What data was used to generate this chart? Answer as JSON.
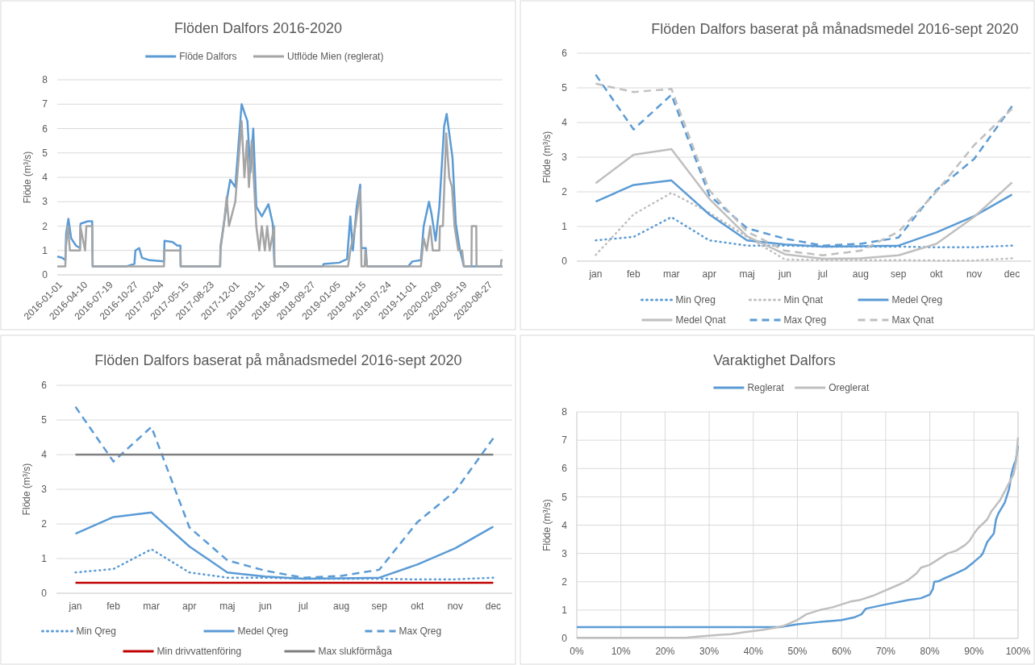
{
  "chart_data": [
    {
      "type": "line",
      "title": "Flöden Dalfors 2016-2020",
      "ylabel": "Flöde (m³/s)",
      "legend": "top",
      "grid": "y",
      "xlim": [
        "2016-01-01",
        "2020-10-27"
      ],
      "xticks": [
        "2016-01-01",
        "2016-04-10",
        "2016-07-19",
        "2016-10-27",
        "2017-02-04",
        "2017-05-15",
        "2017-08-23",
        "2017-12-01",
        "2018-03-11",
        "2018-06-19",
        "2018-09-27",
        "2019-01-05",
        "2019-04-15",
        "2019-07-24",
        "2019-11-01",
        "2020-02-09",
        "2020-05-19",
        "2020-08-27"
      ],
      "ylim": [
        0,
        8
      ],
      "yticks": [
        0,
        1,
        2,
        3,
        4,
        5,
        6,
        7,
        8
      ],
      "series": [
        {
          "name": "Flöde Dalfors",
          "color": "#5b9bd5",
          "line_style": "solid",
          "x": [
            "2016-01-01",
            "2016-01-20",
            "2016-02-02",
            "2016-02-05",
            "2016-02-14",
            "2016-02-25",
            "2016-03-15",
            "2016-03-31",
            "2016-04-02",
            "2016-05-01",
            "2016-05-18",
            "2016-05-20",
            "2016-10-01",
            "2016-11-01",
            "2016-11-05",
            "2016-11-20",
            "2016-12-01",
            "2017-01-01",
            "2017-02-26",
            "2017-02-28",
            "2017-04-01",
            "2017-04-20",
            "2017-05-02",
            "2017-05-03",
            "2017-10-06",
            "2017-10-08",
            "2017-10-25",
            "2017-11-05",
            "2017-11-15",
            "2017-12-05",
            "2017-12-30",
            "2018-01-12",
            "2018-01-22",
            "2018-02-03",
            "2018-02-14",
            "2018-02-26",
            "2018-03-20",
            "2018-04-15",
            "2018-05-02",
            "2018-05-09",
            "2018-11-15",
            "2018-11-20",
            "2019-01-20",
            "2019-02-20",
            "2019-03-05",
            "2019-03-15",
            "2019-03-30",
            "2019-04-13",
            "2019-04-18",
            "2019-05-05",
            "2019-05-10",
            "2019-10-20",
            "2019-11-05",
            "2019-12-09",
            "2019-12-20",
            "2020-01-10",
            "2020-01-20",
            "2020-02-05",
            "2020-02-20",
            "2020-03-10",
            "2020-03-20",
            "2020-04-12",
            "2020-04-25",
            "2020-05-10",
            "2020-05-27",
            "2020-10-27"
          ],
          "values": [
            0.75,
            0.7,
            0.6,
            1.7,
            2.3,
            1.5,
            1.2,
            1.1,
            2.1,
            2.2,
            2.2,
            0.35,
            0.35,
            0.45,
            1.0,
            1.1,
            0.7,
            0.6,
            0.55,
            1.4,
            1.35,
            1.2,
            1.2,
            0.35,
            0.35,
            1.2,
            2.4,
            3.3,
            3.9,
            3.6,
            7.0,
            6.6,
            6.3,
            4.2,
            6.0,
            2.8,
            2.4,
            2.9,
            2.1,
            0.35,
            0.35,
            0.45,
            0.5,
            0.65,
            2.4,
            1.0,
            2.8,
            3.7,
            1.1,
            1.1,
            0.35,
            0.35,
            0.55,
            0.6,
            2.0,
            3.0,
            2.5,
            1.4,
            2.8,
            6.1,
            6.6,
            4.8,
            2.1,
            1.1,
            0.35,
            0.35
          ]
        },
        {
          "name": "Utflöde Mien (reglerat)",
          "color": "#a5a5a5",
          "line_style": "solid",
          "x": [
            "2016-01-01",
            "2016-02-02",
            "2016-02-03",
            "2016-02-12",
            "2016-02-20",
            "2016-03-31",
            "2016-04-01",
            "2016-04-20",
            "2016-04-25",
            "2016-05-18",
            "2016-05-20",
            "2017-02-26",
            "2017-02-27",
            "2017-05-02",
            "2017-05-03",
            "2017-10-06",
            "2017-10-07",
            "2017-10-20",
            "2017-11-01",
            "2017-11-10",
            "2017-12-05",
            "2017-12-30",
            "2018-01-10",
            "2018-01-20",
            "2018-01-28",
            "2018-02-08",
            "2018-02-26",
            "2018-03-10",
            "2018-03-20",
            "2018-04-01",
            "2018-04-10",
            "2018-04-20",
            "2018-05-08",
            "2018-05-09",
            "2019-02-24",
            "2019-03-05",
            "2019-03-25",
            "2019-04-13",
            "2019-04-18",
            "2019-05-01",
            "2019-05-03",
            "2019-05-10",
            "2019-12-09",
            "2019-12-20",
            "2020-01-01",
            "2020-01-15",
            "2020-01-25",
            "2020-02-20",
            "2020-02-22",
            "2020-03-05",
            "2020-03-18",
            "2020-03-30",
            "2020-04-10",
            "2020-04-20",
            "2020-05-05",
            "2020-05-20",
            "2020-05-27",
            "2020-06-26",
            "2020-06-27",
            "2020-07-15",
            "2020-07-16",
            "2020-10-20",
            "2020-10-22",
            "2020-10-27"
          ],
          "values": [
            0.35,
            0.35,
            1.0,
            2.0,
            1.0,
            1.0,
            2.0,
            1.0,
            2.0,
            2.0,
            0.35,
            0.35,
            1.0,
            1.0,
            0.35,
            0.35,
            1.0,
            2.0,
            3.2,
            2.0,
            3.0,
            6.3,
            4.0,
            5.5,
            3.6,
            5.5,
            2.0,
            1.0,
            2.0,
            1.0,
            2.0,
            1.0,
            2.0,
            0.35,
            0.35,
            1.0,
            2.0,
            3.5,
            0.35,
            0.35,
            1.0,
            0.35,
            0.35,
            1.5,
            1.0,
            2.0,
            1.0,
            1.0,
            2.0,
            2.0,
            5.8,
            4.0,
            3.6,
            2.0,
            1.0,
            1.0,
            0.35,
            0.35,
            2.0,
            2.0,
            0.35,
            0.35,
            0.6,
            0.6
          ]
        }
      ]
    },
    {
      "type": "line",
      "title": "Flöden Dalfors baserat på månadsmedel 2016-sept 2020",
      "ylabel": "Flöde (m³/s)",
      "legend": "bottom",
      "grid": "y",
      "categories": [
        "jan",
        "feb",
        "mar",
        "apr",
        "maj",
        "jun",
        "jul",
        "aug",
        "sep",
        "okt",
        "nov",
        "dec"
      ],
      "ylim": [
        0,
        6
      ],
      "yticks": [
        0,
        1,
        2,
        3,
        4,
        5,
        6
      ],
      "series": [
        {
          "name": "Min Qreg",
          "color": "#5b9bd5",
          "line_style": "dotted",
          "values": [
            0.6,
            0.7,
            1.27,
            0.6,
            0.45,
            0.45,
            0.42,
            0.42,
            0.42,
            0.4,
            0.4,
            0.45
          ]
        },
        {
          "name": "Min Qnat",
          "color": "#bfbfbf",
          "line_style": "dotted",
          "values": [
            0.18,
            1.35,
            1.97,
            1.4,
            0.7,
            0.05,
            0.03,
            0.03,
            0.03,
            0.02,
            0.02,
            0.08
          ]
        },
        {
          "name": "Medel Qreg",
          "color": "#5b9bd5",
          "line_style": "solid",
          "values": [
            1.72,
            2.2,
            2.33,
            1.35,
            0.6,
            0.48,
            0.42,
            0.43,
            0.45,
            0.83,
            1.3,
            1.92
          ]
        },
        {
          "name": "Medel Qnat",
          "color": "#bfbfbf",
          "line_style": "solid",
          "values": [
            2.25,
            3.07,
            3.23,
            1.8,
            0.72,
            0.2,
            0.07,
            0.08,
            0.17,
            0.5,
            1.28,
            2.27
          ]
        },
        {
          "name": "Max Qreg",
          "color": "#5b9bd5",
          "line_style": "dashed",
          "values": [
            5.38,
            3.8,
            4.8,
            1.9,
            0.95,
            0.65,
            0.45,
            0.5,
            0.68,
            2.05,
            2.95,
            4.47
          ]
        },
        {
          "name": "Max Qnat",
          "color": "#bfbfbf",
          "line_style": "dashed",
          "values": [
            5.12,
            4.88,
            4.97,
            2.05,
            0.85,
            0.3,
            0.17,
            0.3,
            0.85,
            2.0,
            3.35,
            4.4
          ]
        }
      ]
    },
    {
      "type": "line",
      "title": "Flöden Dalfors baserat på månadsmedel 2016-sept 2020",
      "ylabel": "Flöde (m³/s)",
      "legend": "bottom",
      "grid": "y",
      "categories": [
        "jan",
        "feb",
        "mar",
        "apr",
        "maj",
        "jun",
        "jul",
        "aug",
        "sep",
        "okt",
        "nov",
        "dec"
      ],
      "ylim": [
        0,
        6
      ],
      "yticks": [
        0,
        1,
        2,
        3,
        4,
        5,
        6
      ],
      "series": [
        {
          "name": "Min Qreg",
          "color": "#5b9bd5",
          "line_style": "dotted",
          "values": [
            0.6,
            0.7,
            1.27,
            0.6,
            0.45,
            0.45,
            0.42,
            0.42,
            0.42,
            0.4,
            0.4,
            0.45
          ]
        },
        {
          "name": "Medel Qreg",
          "color": "#5b9bd5",
          "line_style": "solid",
          "values": [
            1.72,
            2.2,
            2.33,
            1.35,
            0.6,
            0.48,
            0.42,
            0.43,
            0.45,
            0.83,
            1.3,
            1.92
          ]
        },
        {
          "name": "Max Qreg",
          "color": "#5b9bd5",
          "line_style": "dashed",
          "values": [
            5.38,
            3.8,
            4.8,
            1.9,
            0.95,
            0.65,
            0.45,
            0.5,
            0.68,
            2.05,
            2.95,
            4.47
          ]
        },
        {
          "name": "Min drivvattenföring",
          "color": "#c00000",
          "line_style": "solid",
          "values": [
            0.3,
            0.3,
            0.3,
            0.3,
            0.3,
            0.3,
            0.3,
            0.3,
            0.3,
            0.3,
            0.3,
            0.3
          ]
        },
        {
          "name": "Max slukförmåga",
          "color": "#7f7f7f",
          "line_style": "solid",
          "values": [
            4,
            4,
            4,
            4,
            4,
            4,
            4,
            4,
            4,
            4,
            4,
            4
          ]
        }
      ]
    },
    {
      "type": "line",
      "title": "Varaktighet Dalfors",
      "ylabel": "Flöde (m³/s)",
      "legend": "top",
      "grid": true,
      "xlim": [
        0,
        100
      ],
      "xticks": [
        {
          "value": 0,
          "label": "0%"
        },
        {
          "value": 10,
          "label": "10%"
        },
        {
          "value": 20,
          "label": "20%"
        },
        {
          "value": 30,
          "label": "30%"
        },
        {
          "value": 40,
          "label": "40%"
        },
        {
          "value": 50,
          "label": "50%"
        },
        {
          "value": 60,
          "label": "60%"
        },
        {
          "value": 70,
          "label": "70%"
        },
        {
          "value": 80,
          "label": "80%"
        },
        {
          "value": 90,
          "label": "90%"
        },
        {
          "value": 100,
          "label": "100%"
        }
      ],
      "ylim": [
        0,
        8
      ],
      "yticks": [
        0,
        1,
        2,
        3,
        4,
        5,
        6,
        7,
        8
      ],
      "series": [
        {
          "name": "Reglerat",
          "color": "#5b9bd5",
          "line_style": "solid",
          "x": [
            0,
            46,
            50,
            55,
            58,
            60,
            63,
            64.5,
            65.5,
            70,
            75,
            78,
            80,
            80.7,
            81,
            82,
            83,
            86,
            88,
            90,
            91.5,
            92,
            93,
            94,
            94.5,
            95,
            95.5,
            97,
            98,
            98.5,
            99,
            99.5,
            100
          ],
          "values": [
            0.4,
            0.4,
            0.5,
            0.58,
            0.62,
            0.65,
            0.75,
            0.85,
            1.05,
            1.2,
            1.35,
            1.42,
            1.55,
            1.75,
            2.0,
            2.02,
            2.1,
            2.3,
            2.45,
            2.7,
            2.9,
            3.0,
            3.4,
            3.6,
            3.7,
            4.2,
            4.4,
            4.8,
            5.3,
            5.8,
            6.1,
            6.3,
            6.8
          ]
        },
        {
          "name": "Oreglerat",
          "color": "#bfbfbf",
          "line_style": "solid",
          "x": [
            0,
            25,
            28,
            32,
            35,
            38,
            42,
            45,
            47,
            50,
            52,
            55,
            58,
            60,
            62,
            64,
            67,
            70,
            73,
            75,
            77,
            78,
            80,
            82,
            84,
            86,
            88,
            89,
            90,
            91,
            93,
            94,
            95,
            96,
            97,
            98,
            99,
            99.5,
            100
          ],
          "values": [
            0.02,
            0.03,
            0.07,
            0.12,
            0.15,
            0.22,
            0.3,
            0.38,
            0.45,
            0.65,
            0.85,
            1.0,
            1.1,
            1.2,
            1.3,
            1.35,
            1.5,
            1.7,
            1.9,
            2.05,
            2.3,
            2.5,
            2.6,
            2.8,
            3.0,
            3.1,
            3.3,
            3.45,
            3.7,
            3.9,
            4.2,
            4.5,
            4.7,
            4.9,
            5.2,
            5.5,
            5.8,
            6.2,
            7.1
          ]
        }
      ]
    }
  ]
}
